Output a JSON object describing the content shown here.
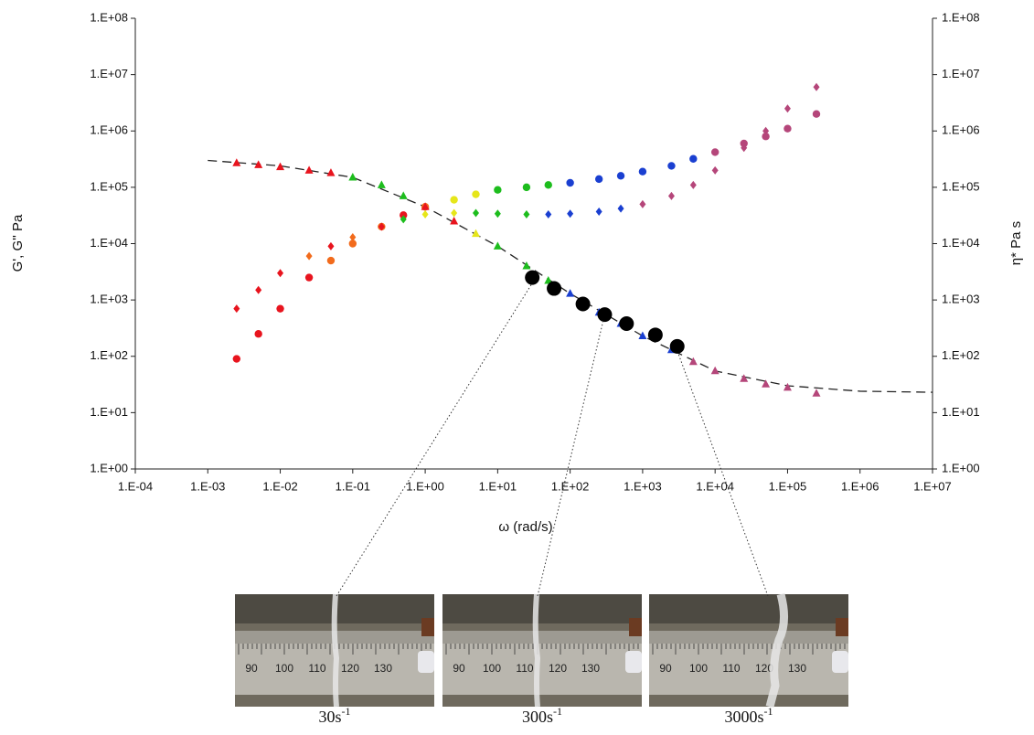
{
  "chart_data": {
    "type": "scatter",
    "log_x": true,
    "log_y": true,
    "xlabel": "ω (rad/s)",
    "ylabel": "G', G'' Pa",
    "y2label": "η* Pa s",
    "xlim": [
      0.0001,
      10000000
    ],
    "xticks": [
      {
        "value": 0.0001,
        "label": "1.E-04"
      },
      {
        "value": 0.001,
        "label": "1.E-03"
      },
      {
        "value": 0.01,
        "label": "1.E-02"
      },
      {
        "value": 0.1,
        "label": "1.E-01"
      },
      {
        "value": 1,
        "label": "1.E+00"
      },
      {
        "value": 10,
        "label": "1.E+01"
      },
      {
        "value": 100,
        "label": "1.E+02"
      },
      {
        "value": 1000,
        "label": "1.E+03"
      },
      {
        "value": 10000,
        "label": "1.E+04"
      },
      {
        "value": 100000,
        "label": "1.E+05"
      },
      {
        "value": 1000000,
        "label": "1.E+06"
      },
      {
        "value": 10000000,
        "label": "1.E+07"
      }
    ],
    "ylim": [
      1,
      100000000
    ],
    "yticks": [
      {
        "value": 1,
        "label": "1.E+00"
      },
      {
        "value": 10,
        "label": "1.E+01"
      },
      {
        "value": 100,
        "label": "1.E+02"
      },
      {
        "value": 1000,
        "label": "1.E+03"
      },
      {
        "value": 10000,
        "label": "1.E+04"
      },
      {
        "value": 100000,
        "label": "1.E+05"
      },
      {
        "value": 1000000,
        "label": "1.E+06"
      },
      {
        "value": 10000000,
        "label": "1.E+07"
      },
      {
        "value": 100000000,
        "label": "1.E+08"
      }
    ],
    "y2lim": [
      1,
      100000000
    ],
    "y2ticks": [
      {
        "value": 1,
        "label": "1.E+00"
      },
      {
        "value": 10,
        "label": "1.E+01"
      },
      {
        "value": 100,
        "label": "1.E+02"
      },
      {
        "value": 1000,
        "label": "1.E+03"
      },
      {
        "value": 10000,
        "label": "1.E+04"
      },
      {
        "value": 100000,
        "label": "1.E+05"
      },
      {
        "value": 1000000,
        "label": "1.E+06"
      },
      {
        "value": 10000000,
        "label": "1.E+07"
      },
      {
        "value": 100000000,
        "label": "1.E+08"
      }
    ],
    "series": [
      {
        "marker": "circle",
        "x": [
          0.0025,
          0.005,
          0.01,
          0.025,
          0.05,
          0.1,
          0.25,
          0.5,
          1,
          2.5,
          5,
          10,
          25,
          50,
          100,
          250,
          500,
          1000,
          2500,
          5000,
          10000,
          25000,
          50000,
          100000,
          250000
        ],
        "values": [
          90,
          250,
          700,
          2500,
          5000,
          10000,
          20000,
          32000,
          45000,
          60000,
          75000,
          90000,
          100000,
          110000,
          120000,
          140000,
          160000,
          190000,
          240000,
          320000,
          420000,
          600000,
          800000,
          1100000,
          2000000
        ],
        "colors": [
          "#e8141e",
          "#e8141e",
          "#e8141e",
          "#e8141e",
          "#f26b1c",
          "#f26b1c",
          "#f26b1c",
          "#e8141e",
          "#f26b1c",
          "#e6e61a",
          "#e6e61a",
          "#1dbd1d",
          "#1dbd1d",
          "#1dbd1d",
          "#1a3fd1",
          "#1a3fd1",
          "#1a3fd1",
          "#1a3fd1",
          "#1a3fd1",
          "#1a3fd1",
          "#b5467a",
          "#b5467a",
          "#b5467a",
          "#b5467a",
          "#b5467a"
        ]
      },
      {
        "marker": "diamond",
        "x": [
          0.0025,
          0.005,
          0.01,
          0.025,
          0.05,
          0.1,
          0.25,
          0.5,
          1,
          2.5,
          5,
          10,
          25,
          50,
          100,
          250,
          500,
          1000,
          2500,
          5000,
          10000,
          25000,
          50000,
          100000,
          250000
        ],
        "values": [
          700,
          1500,
          3000,
          6000,
          9000,
          13000,
          20000,
          27000,
          33000,
          35000,
          35000,
          34000,
          33000,
          33000,
          34000,
          37000,
          42000,
          50000,
          70000,
          110000,
          200000,
          500000,
          1000000,
          2500000,
          6000000
        ],
        "colors": [
          "#e8141e",
          "#e8141e",
          "#e8141e",
          "#f26b1c",
          "#e8141e",
          "#f26b1c",
          "#e8141e",
          "#1dbd1d",
          "#e6e61a",
          "#e6e61a",
          "#1dbd1d",
          "#1dbd1d",
          "#1dbd1d",
          "#1a3fd1",
          "#1a3fd1",
          "#1a3fd1",
          "#1a3fd1",
          "#b5467a",
          "#b5467a",
          "#b5467a",
          "#b5467a",
          "#b5467a",
          "#b5467a",
          "#b5467a",
          "#b5467a"
        ]
      },
      {
        "marker": "triangle",
        "axis": "y2",
        "x": [
          0.0025,
          0.005,
          0.01,
          0.025,
          0.05,
          0.1,
          0.25,
          0.5,
          1,
          2.5,
          5,
          10,
          25,
          50,
          100,
          250,
          500,
          1000,
          2500,
          5000,
          10000,
          25000,
          50000,
          100000,
          250000
        ],
        "values": [
          270000,
          250000,
          230000,
          200000,
          180000,
          150000,
          110000,
          70000,
          45000,
          25000,
          15000,
          9000,
          4000,
          2200,
          1300,
          600,
          380,
          230,
          130,
          80,
          55,
          40,
          32,
          28,
          22
        ],
        "colors": [
          "#e8141e",
          "#e8141e",
          "#e8141e",
          "#e8141e",
          "#e8141e",
          "#1dbd1d",
          "#1dbd1d",
          "#1dbd1d",
          "#e8141e",
          "#e8141e",
          "#e6e61a",
          "#1dbd1d",
          "#1dbd1d",
          "#1dbd1d",
          "#1a3fd1",
          "#1a3fd1",
          "#1a3fd1",
          "#1a3fd1",
          "#1a3fd1",
          "#b5467a",
          "#b5467a",
          "#b5467a",
          "#b5467a",
          "#b5467a",
          "#b5467a"
        ]
      },
      {
        "marker": "big-circle",
        "axis": "y2",
        "color": "#000000",
        "x": [
          30,
          60,
          150,
          300,
          600,
          1500,
          3000
        ],
        "values": [
          2500,
          1600,
          850,
          550,
          380,
          240,
          150
        ]
      },
      {
        "marker": "dashed-line",
        "axis": "y2",
        "color": "#222222",
        "x": [
          0.001,
          0.01,
          0.1,
          1,
          10,
          100,
          1000,
          10000,
          100000,
          1000000,
          10000000
        ],
        "values": [
          300000,
          240000,
          150000,
          45000,
          9000,
          1300,
          230,
          55,
          30,
          24,
          23
        ]
      }
    ]
  },
  "photos": [
    {
      "ruler_labels": [
        "90",
        "100",
        "110",
        "120",
        "130"
      ],
      "caption": {
        "rate": "30s",
        "exponent": "-1"
      }
    },
    {
      "ruler_labels": [
        "90",
        "100",
        "110",
        "120",
        "130"
      ],
      "caption": {
        "rate": "300s",
        "exponent": "-1"
      }
    },
    {
      "ruler_labels": [
        "90",
        "100",
        "110",
        "120",
        "130"
      ],
      "caption": {
        "rate": "3000s",
        "exponent": "-1"
      }
    }
  ]
}
